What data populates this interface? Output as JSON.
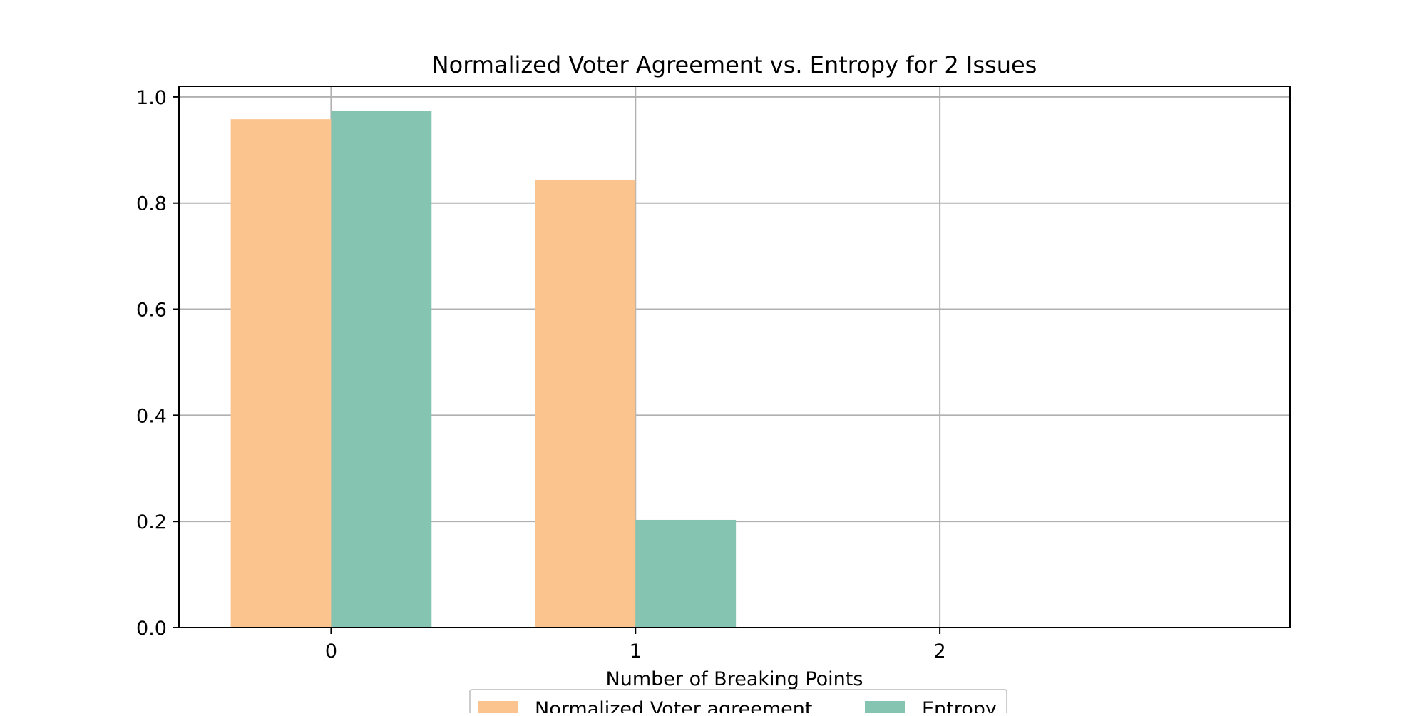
{
  "chart_data": {
    "type": "bar",
    "title": "Normalized Voter Agreement vs. Entropy for 2 Issues",
    "xlabel": "Number of Breaking Points",
    "ylabel": "",
    "categories": [
      "0",
      "1",
      "2"
    ],
    "x": [
      0,
      1,
      2
    ],
    "xlim": [
      -0.5,
      3.15
    ],
    "ylim": [
      0,
      1.02
    ],
    "yticks": [
      "0.0",
      "0.2",
      "0.4",
      "0.6",
      "0.8",
      "1.0"
    ],
    "grid": true,
    "legend_position": "bottom-center",
    "series": [
      {
        "name": "Normalized Voter agreement",
        "color": "#fbc48f",
        "values": [
          0.958,
          0.844,
          0.0
        ]
      },
      {
        "name": "Entropy",
        "color": "#85c4b0",
        "values": [
          0.973,
          0.203,
          0.0
        ]
      }
    ]
  }
}
